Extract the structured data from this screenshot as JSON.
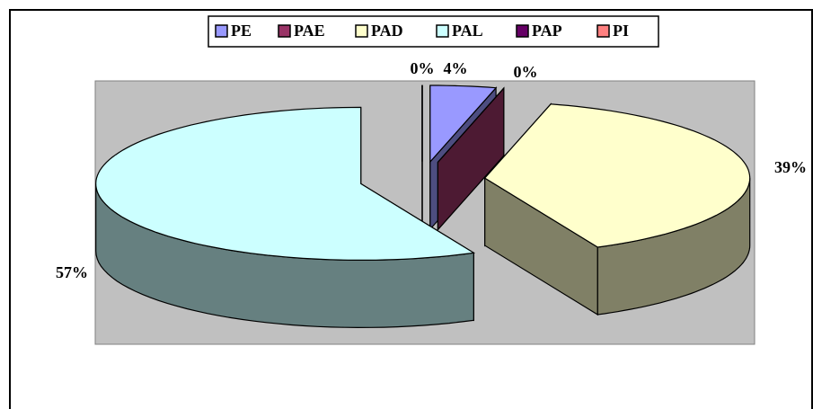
{
  "chart_data": {
    "type": "pie3d",
    "categories": [
      "PE",
      "PAE",
      "PAD",
      "PAL",
      "PAP",
      "PI"
    ],
    "values": [
      4,
      0,
      39,
      57,
      0,
      0
    ],
    "value_labels": [
      "4%",
      "0%",
      "39%",
      "57%",
      "0%",
      null
    ],
    "colors": [
      "#9999ff",
      "#993366",
      "#ffffcc",
      "#ccffff",
      "#660066",
      "#ff8080"
    ],
    "legend": "top"
  }
}
